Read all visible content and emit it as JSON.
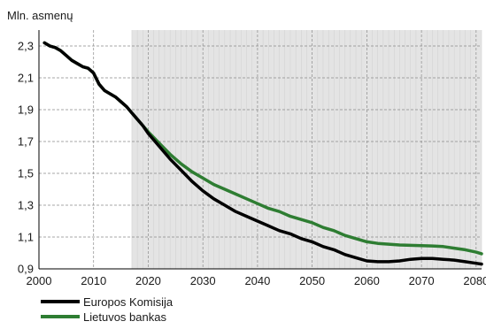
{
  "chart_data": {
    "type": "line",
    "title": "",
    "xlabel": "",
    "ylabel": "Mln. asmenų",
    "xlim": [
      2000,
      2081
    ],
    "ylim": [
      0.9,
      2.4
    ],
    "x_ticks": [
      2000,
      2010,
      2020,
      2030,
      2040,
      2050,
      2060,
      2070,
      2080
    ],
    "y_ticks": [
      0.9,
      1.1,
      1.3,
      1.5,
      1.7,
      1.9,
      2.1,
      2.3
    ],
    "x_tick_labels": [
      "2000",
      "2010",
      "2020",
      "2030",
      "2040",
      "2050",
      "2060",
      "2070",
      "2080"
    ],
    "y_tick_labels": [
      "0,9",
      "1,1",
      "1,3",
      "1,5",
      "1,7",
      "1,9",
      "2,1",
      "2,3"
    ],
    "grid": true,
    "forecast_shading_start": 2017,
    "legend_position": "bottom-left",
    "series": [
      {
        "name": "Europos Komisija",
        "color": "#000000",
        "x": [
          2001,
          2002,
          2003,
          2004,
          2005,
          2006,
          2007,
          2008,
          2009,
          2010,
          2011,
          2012,
          2013,
          2014,
          2015,
          2016,
          2017,
          2018,
          2019,
          2020,
          2022,
          2024,
          2026,
          2028,
          2030,
          2032,
          2034,
          2036,
          2038,
          2040,
          2042,
          2044,
          2046,
          2048,
          2050,
          2052,
          2054,
          2056,
          2058,
          2060,
          2062,
          2064,
          2066,
          2068,
          2070,
          2072,
          2074,
          2076,
          2078,
          2080,
          2081
        ],
        "values": [
          2.32,
          2.3,
          2.29,
          2.27,
          2.24,
          2.21,
          2.19,
          2.17,
          2.16,
          2.13,
          2.06,
          2.02,
          2.0,
          1.98,
          1.95,
          1.92,
          1.88,
          1.84,
          1.8,
          1.75,
          1.67,
          1.59,
          1.52,
          1.45,
          1.39,
          1.34,
          1.3,
          1.26,
          1.23,
          1.2,
          1.17,
          1.14,
          1.12,
          1.09,
          1.07,
          1.04,
          1.02,
          0.99,
          0.97,
          0.95,
          0.945,
          0.945,
          0.95,
          0.96,
          0.965,
          0.965,
          0.96,
          0.955,
          0.945,
          0.935,
          0.93
        ]
      },
      {
        "name": "Lietuvos bankas",
        "color": "#2e7d32",
        "x": [
          2001,
          2002,
          2003,
          2004,
          2005,
          2006,
          2007,
          2008,
          2009,
          2010,
          2011,
          2012,
          2013,
          2014,
          2015,
          2016,
          2017,
          2018,
          2019,
          2020,
          2022,
          2024,
          2026,
          2028,
          2030,
          2032,
          2034,
          2036,
          2038,
          2040,
          2042,
          2044,
          2046,
          2048,
          2050,
          2052,
          2054,
          2056,
          2058,
          2060,
          2062,
          2064,
          2066,
          2068,
          2070,
          2072,
          2074,
          2076,
          2078,
          2080,
          2081
        ],
        "values": [
          2.32,
          2.3,
          2.29,
          2.27,
          2.24,
          2.21,
          2.19,
          2.17,
          2.16,
          2.13,
          2.06,
          2.02,
          2.0,
          1.98,
          1.95,
          1.92,
          1.88,
          1.84,
          1.8,
          1.76,
          1.69,
          1.62,
          1.56,
          1.51,
          1.47,
          1.43,
          1.4,
          1.37,
          1.34,
          1.31,
          1.28,
          1.26,
          1.23,
          1.21,
          1.19,
          1.16,
          1.14,
          1.11,
          1.09,
          1.07,
          1.06,
          1.055,
          1.05,
          1.048,
          1.046,
          1.044,
          1.04,
          1.03,
          1.02,
          1.005,
          0.995
        ]
      }
    ]
  }
}
